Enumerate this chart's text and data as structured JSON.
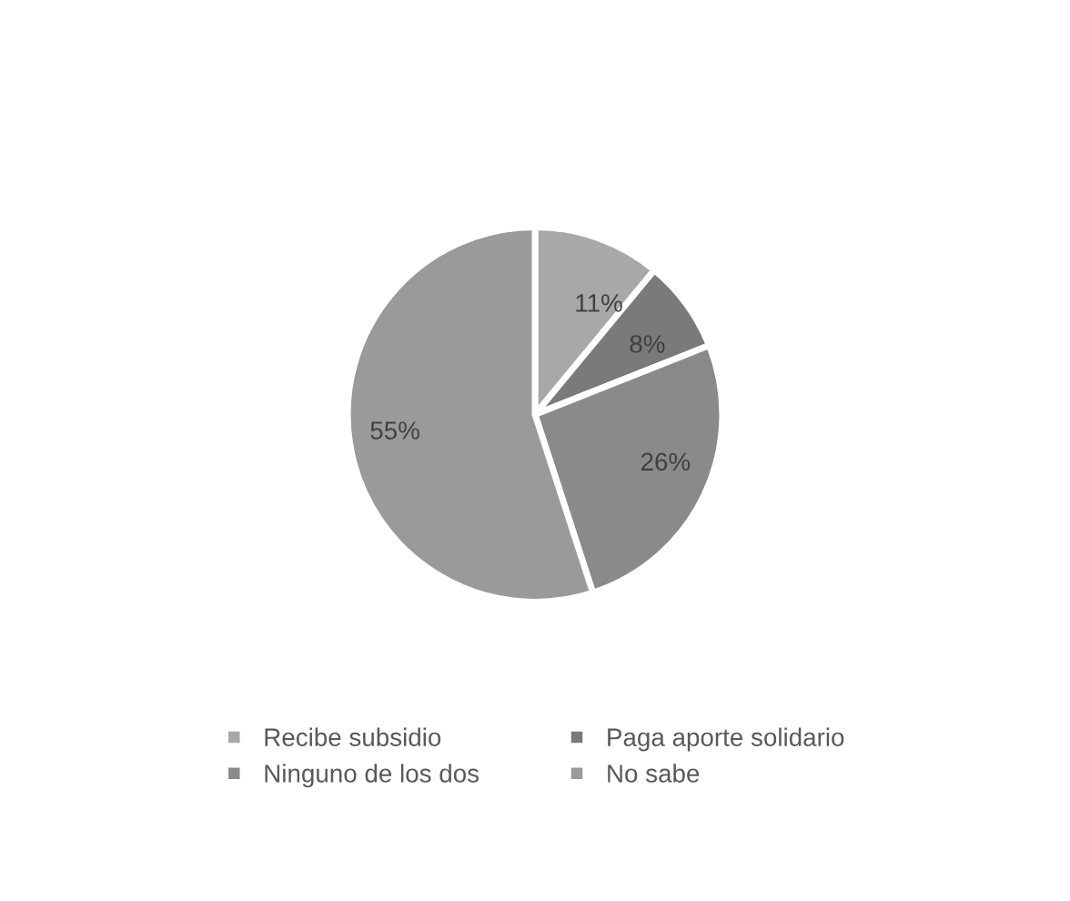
{
  "chart_data": {
    "type": "pie",
    "categories": [
      "Recibe subsidio",
      "Paga aporte solidario",
      "Ninguno de los dos",
      "No sabe"
    ],
    "values": [
      11,
      8,
      26,
      55
    ],
    "value_labels": [
      "11%",
      "8%",
      "26%",
      "55%"
    ],
    "colors": [
      "#a8a8a8",
      "#7a7a7a",
      "#8a8a8a",
      "#9a9a9a"
    ],
    "legend": "bottom"
  }
}
